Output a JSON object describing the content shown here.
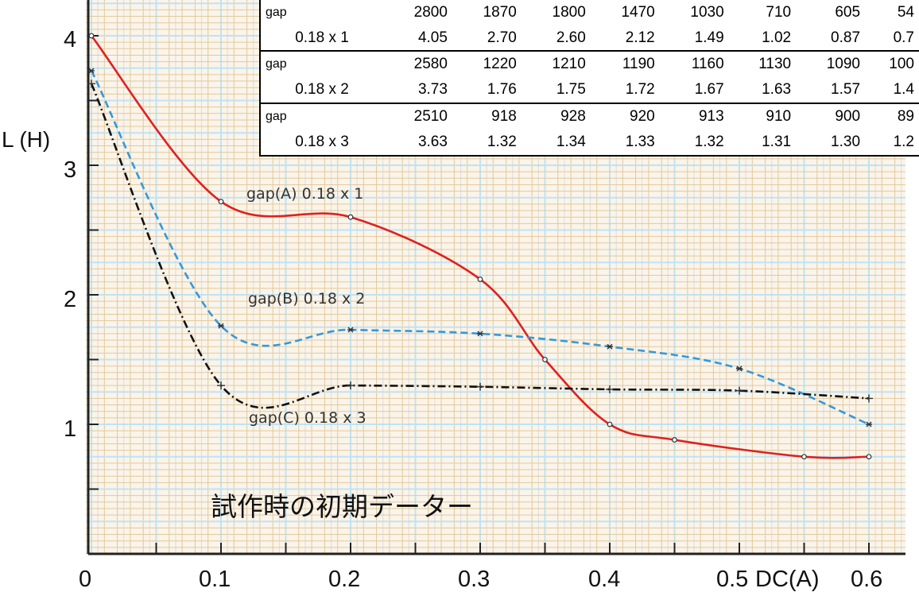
{
  "chart_data": {
    "type": "line",
    "title": "",
    "xlabel": "DC(A)",
    "ylabel": "L (H)",
    "xlim": [
      0,
      0.62
    ],
    "ylim": [
      0,
      4.2
    ],
    "x_ticks": [
      "0",
      "0.1",
      "0.2",
      "0.3",
      "0.4",
      "0.5",
      "0.6"
    ],
    "y_ticks": [
      "1",
      "2",
      "3",
      "4"
    ],
    "grid": true,
    "series": [
      {
        "name": "gap(A) 0.18 x 1",
        "color": "#e02020",
        "style": "solid",
        "marker": "circle",
        "x": [
          0,
          0.1,
          0.2,
          0.3,
          0.35,
          0.4,
          0.45,
          0.55,
          0.6
        ],
        "y": [
          4.0,
          2.72,
          2.6,
          2.12,
          1.5,
          1.0,
          0.88,
          0.75,
          0.75
        ]
      },
      {
        "name": "gap(B) 0.18 x 2",
        "color": "#3399dd",
        "style": "dashed",
        "marker": "star",
        "x": [
          0,
          0.1,
          0.2,
          0.3,
          0.4,
          0.5,
          0.6
        ],
        "y": [
          3.73,
          1.76,
          1.73,
          1.7,
          1.6,
          1.43,
          1.0
        ]
      },
      {
        "name": "gap(C) 0.18 x 3",
        "color": "#111111",
        "style": "dashdot",
        "marker": "plus",
        "x": [
          0,
          0.1,
          0.2,
          0.3,
          0.4,
          0.5,
          0.6
        ],
        "y": [
          3.63,
          1.3,
          1.3,
          1.29,
          1.27,
          1.26,
          1.2
        ]
      }
    ],
    "annotations": [
      "gap(A) 0.18 x 1",
      "gap(B) 0.18 x 2",
      "gap(C) 0.18 x 3"
    ],
    "caption": "試作時の初期データー",
    "table": {
      "rows": [
        {
          "label": "gap",
          "values": [
            "2800",
            "1870",
            "1800",
            "1470",
            "1030",
            "710",
            "605",
            "54"
          ]
        },
        {
          "label": "0.18 x 1",
          "values": [
            "4.05",
            "2.70",
            "2.60",
            "2.12",
            "1.49",
            "1.02",
            "0.87",
            "0.7"
          ]
        },
        {
          "label": "gap",
          "values": [
            "2580",
            "1220",
            "1210",
            "1190",
            "1160",
            "1130",
            "1090",
            "100"
          ]
        },
        {
          "label": "0.18 x 2",
          "values": [
            "3.73",
            "1.76",
            "1.75",
            "1.72",
            "1.67",
            "1.63",
            "1.57",
            "1.4"
          ]
        },
        {
          "label": "gap",
          "values": [
            "2510",
            "918",
            "928",
            "920",
            "913",
            "910",
            "900",
            "89"
          ]
        },
        {
          "label": "0.18 x 3",
          "values": [
            "3.63",
            "1.32",
            "1.34",
            "1.33",
            "1.32",
            "1.31",
            "1.30",
            "1.2"
          ]
        }
      ]
    }
  }
}
